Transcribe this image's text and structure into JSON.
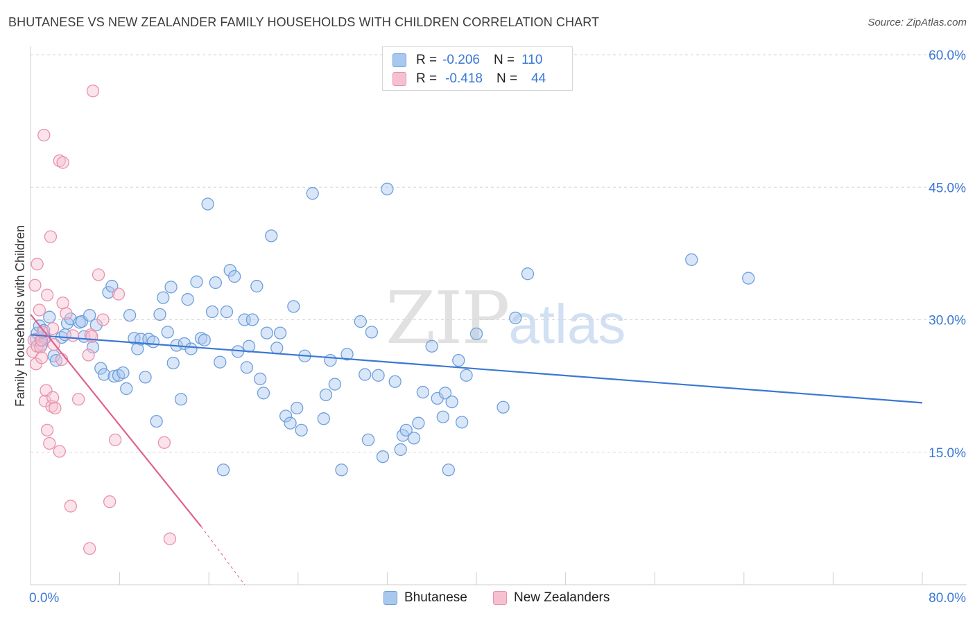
{
  "title": "BHUTANESE VS NEW ZEALANDER FAMILY HOUSEHOLDS WITH CHILDREN CORRELATION CHART",
  "source": "Source: ZipAtlas.com",
  "watermark": {
    "zip": "ZIP",
    "atlas": "atlas"
  },
  "legend_top": [
    {
      "r_label": "R =",
      "r_value": "-0.206",
      "n_label": "N =",
      "n_value": "110"
    },
    {
      "r_label": "R =",
      "r_value": "-0.418",
      "n_label": "N =",
      "n_value": "44"
    }
  ],
  "legend_bottom": [
    "Bhutanese",
    "New Zealanders"
  ],
  "colors": {
    "blue_fill": "#a9c8ef",
    "blue_stroke": "#6f9fdc",
    "blue_line": "#3a78d4",
    "pink_fill": "#f7c0d1",
    "pink_stroke": "#e991ae",
    "pink_line": "#e0608f",
    "tick_label": "#3a78d4",
    "grid": "#d5d5d5"
  },
  "chart_data": {
    "type": "scatter",
    "title": "BHUTANESE VS NEW ZEALANDER FAMILY HOUSEHOLDS WITH CHILDREN CORRELATION CHART",
    "xlabel": "",
    "ylabel": "Family Households with Children",
    "xlim": [
      0,
      80
    ],
    "ylim": [
      0,
      60
    ],
    "x_tick_labels": [
      "0.0%",
      "80.0%"
    ],
    "y_ticks": [
      15,
      30,
      45,
      60
    ],
    "y_tick_labels": [
      "15.0%",
      "30.0%",
      "45.0%",
      "60.0%"
    ],
    "grid": true,
    "legend_position": "top-center",
    "series": [
      {
        "name": "Bhutanese",
        "r": -0.206,
        "n": 110,
        "trend": {
          "x": [
            0,
            80
          ],
          "y": [
            28.3,
            20.6
          ]
        },
        "points": [
          [
            0.5,
            27.8
          ],
          [
            0.6,
            28.5
          ],
          [
            0.8,
            29.3
          ],
          [
            0.9,
            27.6
          ],
          [
            1.0,
            27.2
          ],
          [
            1.2,
            28.8
          ],
          [
            1.3,
            27.9
          ],
          [
            1.7,
            30.3
          ],
          [
            2.1,
            25.9
          ],
          [
            2.3,
            25.4
          ],
          [
            2.8,
            28.0
          ],
          [
            3.1,
            28.3
          ],
          [
            3.3,
            29.6
          ],
          [
            3.6,
            30.1
          ],
          [
            4.4,
            29.7
          ],
          [
            4.6,
            29.8
          ],
          [
            4.8,
            28.1
          ],
          [
            5.3,
            30.5
          ],
          [
            5.6,
            26.9
          ],
          [
            5.9,
            29.4
          ],
          [
            6.3,
            24.5
          ],
          [
            6.6,
            23.8
          ],
          [
            7.0,
            33.1
          ],
          [
            7.3,
            33.8
          ],
          [
            7.5,
            23.6
          ],
          [
            7.9,
            23.7
          ],
          [
            8.3,
            24.0
          ],
          [
            8.6,
            22.2
          ],
          [
            8.9,
            30.5
          ],
          [
            9.3,
            27.9
          ],
          [
            9.6,
            26.7
          ],
          [
            9.9,
            27.8
          ],
          [
            10.3,
            23.5
          ],
          [
            10.6,
            27.8
          ],
          [
            11.0,
            27.5
          ],
          [
            11.3,
            18.5
          ],
          [
            11.6,
            30.6
          ],
          [
            11.9,
            32.5
          ],
          [
            12.3,
            28.6
          ],
          [
            12.6,
            33.7
          ],
          [
            12.8,
            25.1
          ],
          [
            13.1,
            27.1
          ],
          [
            13.5,
            21.0
          ],
          [
            13.8,
            27.3
          ],
          [
            14.1,
            32.3
          ],
          [
            14.4,
            26.7
          ],
          [
            14.9,
            34.3
          ],
          [
            15.3,
            27.9
          ],
          [
            15.6,
            27.7
          ],
          [
            15.9,
            43.1
          ],
          [
            16.3,
            30.9
          ],
          [
            16.6,
            34.2
          ],
          [
            17.0,
            25.2
          ],
          [
            17.3,
            13.0
          ],
          [
            17.6,
            30.9
          ],
          [
            17.9,
            35.6
          ],
          [
            18.3,
            34.9
          ],
          [
            18.6,
            26.4
          ],
          [
            19.2,
            30.0
          ],
          [
            19.4,
            24.6
          ],
          [
            19.6,
            27.0
          ],
          [
            19.9,
            30.0
          ],
          [
            20.3,
            33.8
          ],
          [
            20.6,
            23.3
          ],
          [
            20.9,
            21.7
          ],
          [
            21.2,
            28.5
          ],
          [
            21.6,
            39.5
          ],
          [
            22.1,
            26.8
          ],
          [
            22.4,
            28.5
          ],
          [
            22.9,
            19.1
          ],
          [
            23.3,
            18.3
          ],
          [
            23.6,
            31.5
          ],
          [
            23.9,
            20.0
          ],
          [
            24.3,
            17.5
          ],
          [
            24.6,
            25.9
          ],
          [
            25.3,
            44.3
          ],
          [
            26.3,
            18.8
          ],
          [
            26.5,
            21.5
          ],
          [
            26.9,
            25.4
          ],
          [
            27.3,
            22.7
          ],
          [
            27.9,
            13.0
          ],
          [
            28.4,
            26.1
          ],
          [
            29.6,
            29.8
          ],
          [
            30.0,
            23.8
          ],
          [
            30.3,
            16.4
          ],
          [
            30.6,
            28.6
          ],
          [
            31.2,
            23.7
          ],
          [
            31.6,
            14.5
          ],
          [
            32.0,
            44.8
          ],
          [
            32.7,
            23.0
          ],
          [
            33.2,
            15.3
          ],
          [
            33.4,
            16.9
          ],
          [
            33.7,
            17.5
          ],
          [
            34.4,
            16.6
          ],
          [
            34.8,
            18.3
          ],
          [
            35.2,
            21.8
          ],
          [
            36.0,
            27.0
          ],
          [
            36.5,
            21.1
          ],
          [
            37.0,
            19.0
          ],
          [
            37.2,
            21.7
          ],
          [
            37.5,
            13.0
          ],
          [
            37.8,
            20.7
          ],
          [
            38.4,
            25.4
          ],
          [
            38.7,
            18.4
          ],
          [
            39.1,
            23.7
          ],
          [
            40.0,
            28.4
          ],
          [
            42.4,
            20.1
          ],
          [
            43.5,
            30.2
          ],
          [
            44.6,
            35.2
          ],
          [
            59.3,
            36.8
          ],
          [
            64.4,
            34.7
          ]
        ]
      },
      {
        "name": "New Zealanders",
        "r": -0.418,
        "n": 44,
        "trend": {
          "x": [
            0,
            15.3
          ],
          "y": [
            30.6,
            6.6
          ],
          "dashed_to": {
            "x": 19.2,
            "y": 0
          }
        },
        "points": [
          [
            0.2,
            26.4
          ],
          [
            0.3,
            27.7
          ],
          [
            0.4,
            33.9
          ],
          [
            0.5,
            25.0
          ],
          [
            0.6,
            27.0
          ],
          [
            0.6,
            36.3
          ],
          [
            0.8,
            31.1
          ],
          [
            0.9,
            26.9
          ],
          [
            1.0,
            25.7
          ],
          [
            1.0,
            27.7
          ],
          [
            1.1,
            28.6
          ],
          [
            1.2,
            50.9
          ],
          [
            1.3,
            20.8
          ],
          [
            1.4,
            22.0
          ],
          [
            1.5,
            32.8
          ],
          [
            1.5,
            17.5
          ],
          [
            1.7,
            16.0
          ],
          [
            1.8,
            39.4
          ],
          [
            1.9,
            20.2
          ],
          [
            2.0,
            21.2
          ],
          [
            2.0,
            29.0
          ],
          [
            2.1,
            27.2
          ],
          [
            2.2,
            20.0
          ],
          [
            2.6,
            48.0
          ],
          [
            2.6,
            15.1
          ],
          [
            2.8,
            25.5
          ],
          [
            2.9,
            47.8
          ],
          [
            2.9,
            31.9
          ],
          [
            3.2,
            30.7
          ],
          [
            3.6,
            8.9
          ],
          [
            3.8,
            28.2
          ],
          [
            4.3,
            21.0
          ],
          [
            5.2,
            26.0
          ],
          [
            5.3,
            4.1
          ],
          [
            5.4,
            28.3
          ],
          [
            5.5,
            28.1
          ],
          [
            5.6,
            55.9
          ],
          [
            6.1,
            35.1
          ],
          [
            6.5,
            30.0
          ],
          [
            7.1,
            9.4
          ],
          [
            7.6,
            16.4
          ],
          [
            7.9,
            32.9
          ],
          [
            12.0,
            16.1
          ],
          [
            12.5,
            5.2
          ]
        ]
      }
    ]
  }
}
